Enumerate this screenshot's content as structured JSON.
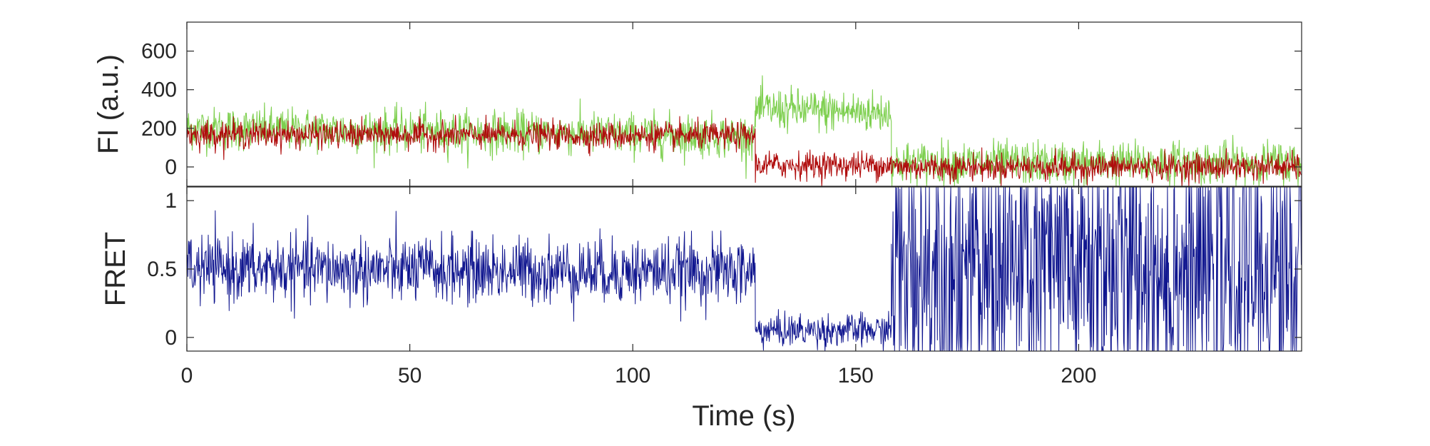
{
  "chart_data": [
    {
      "type": "line",
      "panel": "top",
      "title": "",
      "xlabel": "",
      "ylabel": "FI (a.u.)",
      "xlim": [
        0,
        250
      ],
      "ylim": [
        -100,
        750
      ],
      "xticks": [
        0,
        50,
        100,
        150,
        200
      ],
      "yticks": [
        0,
        200,
        400,
        600
      ],
      "ytick_labels": [
        "0",
        "200",
        "400",
        "600"
      ],
      "grid": false,
      "legend": "none",
      "noise_std": [
        55,
        35
      ],
      "series": [
        {
          "color": "#7dcf4e",
          "segments": [
            {
              "x0": 0,
              "x1": 127.5,
              "y0": 200,
              "y1": 160
            },
            {
              "x0": 127.5,
              "x1": 158,
              "y0": 300,
              "y1": 280
            },
            {
              "x0": 158,
              "x1": 250,
              "y0": 20,
              "y1": 20
            }
          ]
        },
        {
          "color": "#b00d0d",
          "segments": [
            {
              "x0": 0,
              "x1": 127.5,
              "y0": 170,
              "y1": 160
            },
            {
              "x0": 127.5,
              "x1": 158,
              "y0": 10,
              "y1": 10
            },
            {
              "x0": 158,
              "x1": 250,
              "y0": 0,
              "y1": 0
            }
          ]
        }
      ]
    },
    {
      "type": "line",
      "panel": "bottom",
      "title": "",
      "xlabel": "Time (s)",
      "ylabel": "FRET",
      "xlim": [
        0,
        250
      ],
      "ylim": [
        -0.1,
        1.1
      ],
      "xticks": [
        0,
        50,
        100,
        150,
        200
      ],
      "xtick_labels": [
        "0",
        "50",
        "100",
        "150",
        "200"
      ],
      "yticks": [
        0,
        0.5,
        1
      ],
      "ytick_labels": [
        "0",
        "0.5",
        "1"
      ],
      "grid": false,
      "legend": "none",
      "noise_std": [
        0.12,
        0.06,
        0.55
      ],
      "series": [
        {
          "color": "#10168f",
          "segments": [
            {
              "x0": 0,
              "x1": 127.5,
              "y0": 0.5,
              "y1": 0.48
            },
            {
              "x0": 127.5,
              "x1": 158,
              "y0": 0.05,
              "y1": 0.05
            },
            {
              "x0": 158,
              "x1": 250,
              "y0": 0.5,
              "y1": 0.5
            }
          ]
        }
      ]
    }
  ]
}
